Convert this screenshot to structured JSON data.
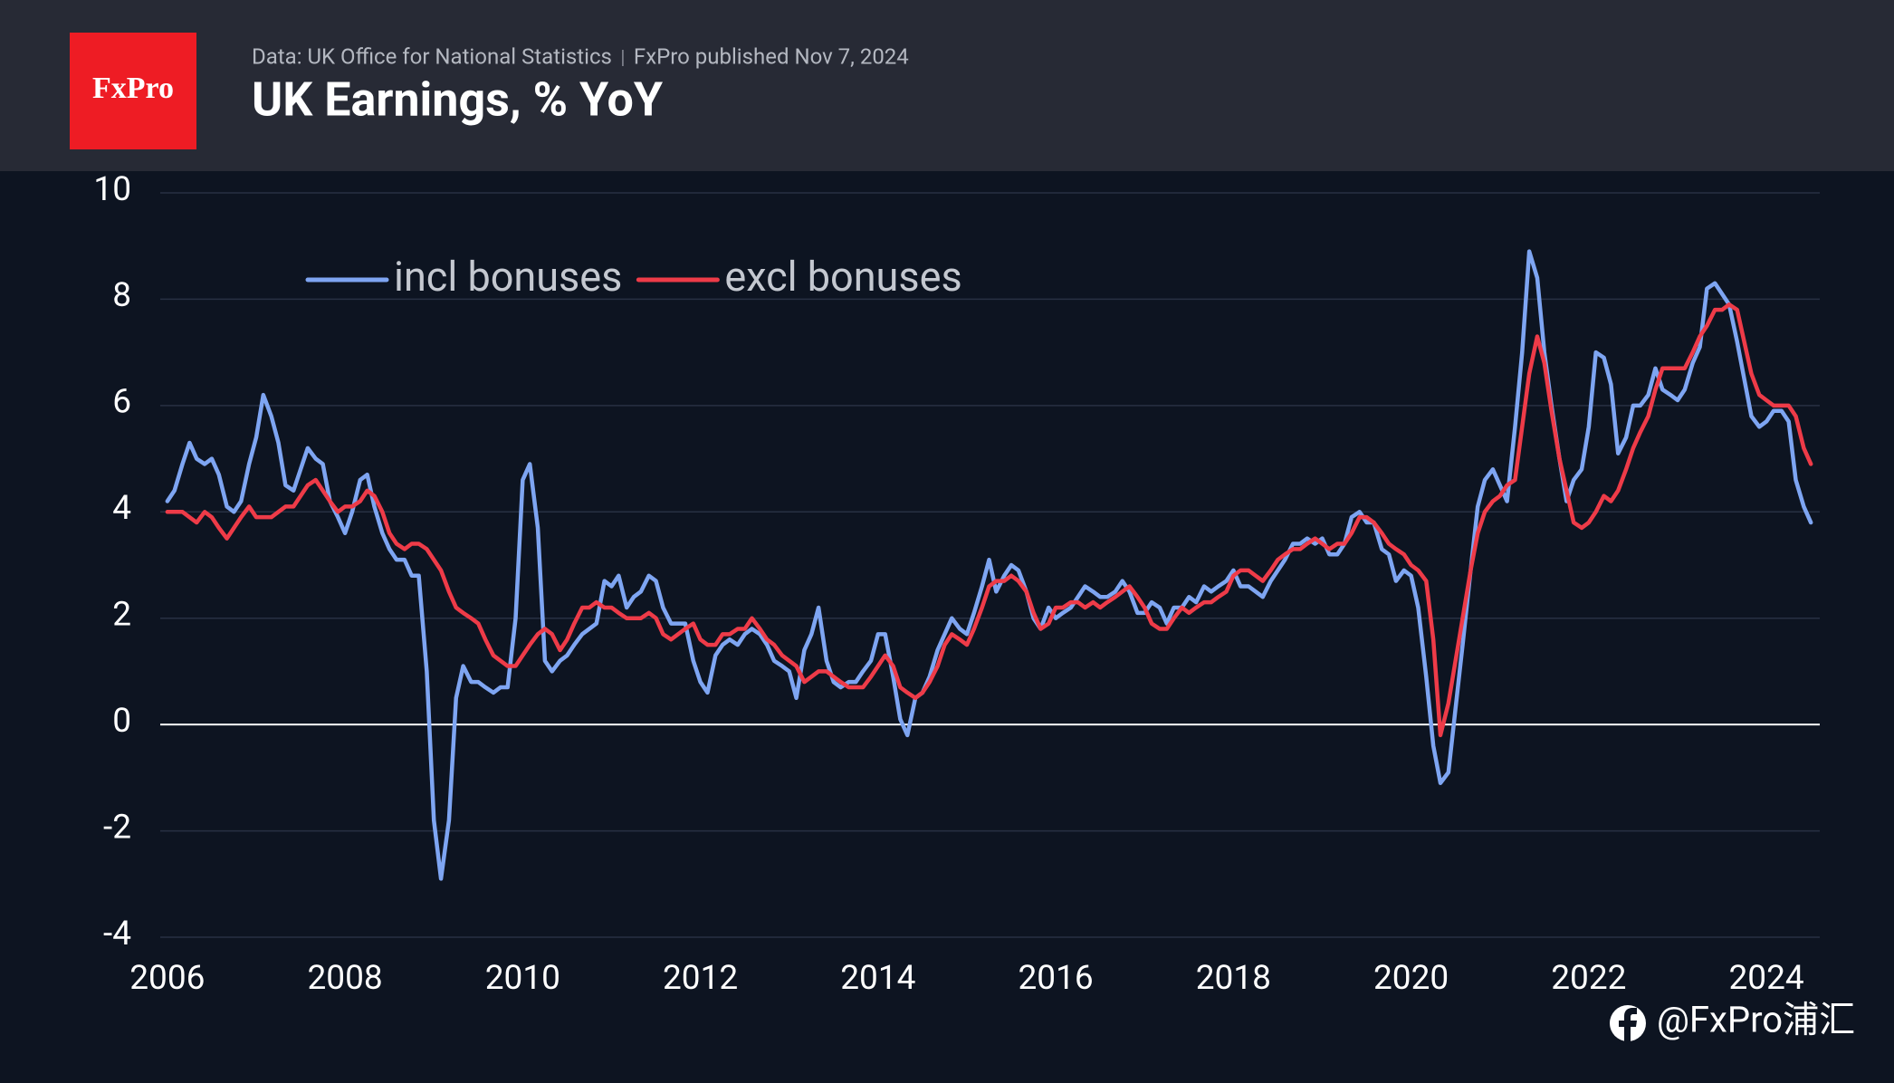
{
  "logo": "FxPro",
  "source": "Data: UK Office for National Statistics",
  "published": "FxPro published Nov 7, 2024",
  "watermark": "@FxPro浦汇",
  "chart_data": {
    "type": "line",
    "title": "UK Earnings, % YoY",
    "legend_position": "upper-left",
    "grid": true,
    "xlim": [
      2005.92,
      2024.6
    ],
    "ylim": [
      -4,
      10
    ],
    "xticks": [
      2006,
      2008,
      2010,
      2012,
      2014,
      2016,
      2018,
      2020,
      2022,
      2024
    ],
    "yticks": [
      -4,
      -2,
      0,
      2,
      4,
      6,
      8,
      10
    ],
    "x": [
      2006,
      2006.08,
      2006.17,
      2006.25,
      2006.33,
      2006.42,
      2006.5,
      2006.58,
      2006.67,
      2006.75,
      2006.83,
      2006.92,
      2007,
      2007.08,
      2007.17,
      2007.25,
      2007.33,
      2007.42,
      2007.5,
      2007.58,
      2007.67,
      2007.75,
      2007.83,
      2007.92,
      2008,
      2008.08,
      2008.17,
      2008.25,
      2008.33,
      2008.42,
      2008.5,
      2008.58,
      2008.67,
      2008.75,
      2008.83,
      2008.92,
      2009,
      2009.08,
      2009.17,
      2009.25,
      2009.33,
      2009.42,
      2009.5,
      2009.58,
      2009.67,
      2009.75,
      2009.83,
      2009.92,
      2010,
      2010.08,
      2010.17,
      2010.25,
      2010.33,
      2010.42,
      2010.5,
      2010.58,
      2010.67,
      2010.75,
      2010.83,
      2010.92,
      2011,
      2011.08,
      2011.17,
      2011.25,
      2011.33,
      2011.42,
      2011.5,
      2011.58,
      2011.67,
      2011.75,
      2011.83,
      2011.92,
      2012,
      2012.08,
      2012.17,
      2012.25,
      2012.33,
      2012.42,
      2012.5,
      2012.58,
      2012.67,
      2012.75,
      2012.83,
      2012.92,
      2013,
      2013.08,
      2013.17,
      2013.25,
      2013.33,
      2013.42,
      2013.5,
      2013.58,
      2013.67,
      2013.75,
      2013.83,
      2013.92,
      2014,
      2014.08,
      2014.17,
      2014.25,
      2014.33,
      2014.42,
      2014.5,
      2014.58,
      2014.67,
      2014.75,
      2014.83,
      2014.92,
      2015,
      2015.08,
      2015.17,
      2015.25,
      2015.33,
      2015.42,
      2015.5,
      2015.58,
      2015.67,
      2015.75,
      2015.83,
      2015.92,
      2016,
      2016.08,
      2016.17,
      2016.25,
      2016.33,
      2016.42,
      2016.5,
      2016.58,
      2016.67,
      2016.75,
      2016.83,
      2016.92,
      2017,
      2017.08,
      2017.17,
      2017.25,
      2017.33,
      2017.42,
      2017.5,
      2017.58,
      2017.67,
      2017.75,
      2017.83,
      2017.92,
      2018,
      2018.08,
      2018.17,
      2018.25,
      2018.33,
      2018.42,
      2018.5,
      2018.58,
      2018.67,
      2018.75,
      2018.83,
      2018.92,
      2019,
      2019.08,
      2019.17,
      2019.25,
      2019.33,
      2019.42,
      2019.5,
      2019.58,
      2019.67,
      2019.75,
      2019.83,
      2019.92,
      2020,
      2020.08,
      2020.17,
      2020.25,
      2020.33,
      2020.42,
      2020.5,
      2020.58,
      2020.67,
      2020.75,
      2020.83,
      2020.92,
      2021,
      2021.08,
      2021.17,
      2021.25,
      2021.33,
      2021.42,
      2021.5,
      2021.58,
      2021.67,
      2021.75,
      2021.83,
      2021.92,
      2022,
      2022.08,
      2022.17,
      2022.25,
      2022.33,
      2022.42,
      2022.5,
      2022.58,
      2022.67,
      2022.75,
      2022.83,
      2022.92,
      2023,
      2023.08,
      2023.17,
      2023.25,
      2023.33,
      2023.42,
      2023.5,
      2023.58,
      2023.67,
      2023.75,
      2023.83,
      2023.92,
      2024,
      2024.08,
      2024.17,
      2024.25,
      2024.33,
      2024.42,
      2024.5
    ],
    "series": [
      {
        "name": "incl bonuses",
        "color": "#7ea5f2",
        "values": [
          4.2,
          4.4,
          4.9,
          5.3,
          5.0,
          4.9,
          5.0,
          4.7,
          4.1,
          4.0,
          4.2,
          4.9,
          5.4,
          6.2,
          5.8,
          5.3,
          4.5,
          4.4,
          4.8,
          5.2,
          5.0,
          4.9,
          4.2,
          3.9,
          3.6,
          4.0,
          4.6,
          4.7,
          4.1,
          3.6,
          3.3,
          3.1,
          3.1,
          2.8,
          2.8,
          1.0,
          -1.8,
          -2.9,
          -1.8,
          0.5,
          1.1,
          0.8,
          0.8,
          0.7,
          0.6,
          0.7,
          0.7,
          2.0,
          4.6,
          4.9,
          3.7,
          1.2,
          1.0,
          1.2,
          1.3,
          1.5,
          1.7,
          1.8,
          1.9,
          2.7,
          2.6,
          2.8,
          2.2,
          2.4,
          2.5,
          2.8,
          2.7,
          2.2,
          1.9,
          1.9,
          1.9,
          1.2,
          0.8,
          0.6,
          1.3,
          1.5,
          1.6,
          1.5,
          1.7,
          1.8,
          1.7,
          1.5,
          1.2,
          1.1,
          1.0,
          0.5,
          1.4,
          1.7,
          2.2,
          1.2,
          0.8,
          0.7,
          0.8,
          0.8,
          1.0,
          1.2,
          1.7,
          1.7,
          0.9,
          0.1,
          -0.2,
          0.5,
          0.6,
          0.9,
          1.4,
          1.7,
          2.0,
          1.8,
          1.7,
          2.1,
          2.6,
          3.1,
          2.5,
          2.8,
          3.0,
          2.9,
          2.5,
          2.0,
          1.8,
          2.2,
          2.0,
          2.1,
          2.2,
          2.4,
          2.6,
          2.5,
          2.4,
          2.4,
          2.5,
          2.7,
          2.5,
          2.1,
          2.1,
          2.3,
          2.2,
          1.9,
          2.2,
          2.2,
          2.4,
          2.3,
          2.6,
          2.5,
          2.6,
          2.7,
          2.9,
          2.6,
          2.6,
          2.5,
          2.4,
          2.7,
          2.9,
          3.1,
          3.4,
          3.4,
          3.5,
          3.4,
          3.5,
          3.2,
          3.2,
          3.4,
          3.9,
          4.0,
          3.8,
          3.8,
          3.3,
          3.2,
          2.7,
          2.9,
          2.8,
          2.2,
          0.9,
          -0.4,
          -1.1,
          -0.9,
          0.3,
          1.5,
          2.9,
          4.1,
          4.6,
          4.8,
          4.5,
          4.2,
          5.6,
          7.0,
          8.9,
          8.4,
          7.0,
          6.0,
          5.0,
          4.2,
          4.6,
          4.8,
          5.6,
          7.0,
          6.9,
          6.4,
          5.1,
          5.4,
          6.0,
          6.0,
          6.2,
          6.7,
          6.3,
          6.2,
          6.1,
          6.3,
          6.8,
          7.1,
          8.2,
          8.3,
          8.1,
          7.9,
          7.2,
          6.5,
          5.8,
          5.6,
          5.7,
          5.9,
          5.9,
          5.7,
          4.6,
          4.1,
          3.8
        ]
      },
      {
        "name": "excl bonuses",
        "color": "#ee3b48",
        "values": [
          4.0,
          4.0,
          4.0,
          3.9,
          3.8,
          4.0,
          3.9,
          3.7,
          3.5,
          3.7,
          3.9,
          4.1,
          3.9,
          3.9,
          3.9,
          4.0,
          4.1,
          4.1,
          4.3,
          4.5,
          4.6,
          4.4,
          4.2,
          4.0,
          4.1,
          4.1,
          4.2,
          4.4,
          4.3,
          4.0,
          3.6,
          3.4,
          3.3,
          3.4,
          3.4,
          3.3,
          3.1,
          2.9,
          2.5,
          2.2,
          2.1,
          2.0,
          1.9,
          1.6,
          1.3,
          1.2,
          1.1,
          1.1,
          1.3,
          1.5,
          1.7,
          1.8,
          1.7,
          1.4,
          1.6,
          1.9,
          2.2,
          2.2,
          2.3,
          2.2,
          2.2,
          2.1,
          2.0,
          2.0,
          2.0,
          2.1,
          2.0,
          1.7,
          1.6,
          1.7,
          1.8,
          1.9,
          1.6,
          1.5,
          1.5,
          1.7,
          1.7,
          1.8,
          1.8,
          2.0,
          1.8,
          1.6,
          1.5,
          1.3,
          1.2,
          1.1,
          0.8,
          0.9,
          1.0,
          1.0,
          0.9,
          0.8,
          0.7,
          0.7,
          0.7,
          0.9,
          1.1,
          1.3,
          1.1,
          0.7,
          0.6,
          0.5,
          0.6,
          0.8,
          1.1,
          1.5,
          1.7,
          1.6,
          1.5,
          1.8,
          2.2,
          2.6,
          2.7,
          2.7,
          2.8,
          2.7,
          2.5,
          2.1,
          1.8,
          1.9,
          2.2,
          2.2,
          2.3,
          2.3,
          2.2,
          2.3,
          2.2,
          2.3,
          2.4,
          2.5,
          2.6,
          2.4,
          2.2,
          1.9,
          1.8,
          1.8,
          2.0,
          2.2,
          2.1,
          2.2,
          2.3,
          2.3,
          2.4,
          2.5,
          2.8,
          2.9,
          2.9,
          2.8,
          2.7,
          2.9,
          3.1,
          3.2,
          3.3,
          3.3,
          3.4,
          3.5,
          3.4,
          3.3,
          3.4,
          3.4,
          3.6,
          3.9,
          3.9,
          3.8,
          3.6,
          3.4,
          3.3,
          3.2,
          3.0,
          2.9,
          2.7,
          1.6,
          -0.2,
          0.4,
          1.2,
          2.0,
          2.9,
          3.6,
          4.0,
          4.2,
          4.3,
          4.5,
          4.6,
          5.6,
          6.6,
          7.3,
          6.8,
          5.9,
          5.0,
          4.4,
          3.8,
          3.7,
          3.8,
          4.0,
          4.3,
          4.2,
          4.4,
          4.8,
          5.2,
          5.5,
          5.8,
          6.3,
          6.7,
          6.7,
          6.7,
          6.7,
          7.0,
          7.3,
          7.5,
          7.8,
          7.8,
          7.9,
          7.8,
          7.2,
          6.6,
          6.2,
          6.1,
          6.0,
          6.0,
          6.0,
          5.8,
          5.2,
          4.9
        ]
      }
    ]
  }
}
